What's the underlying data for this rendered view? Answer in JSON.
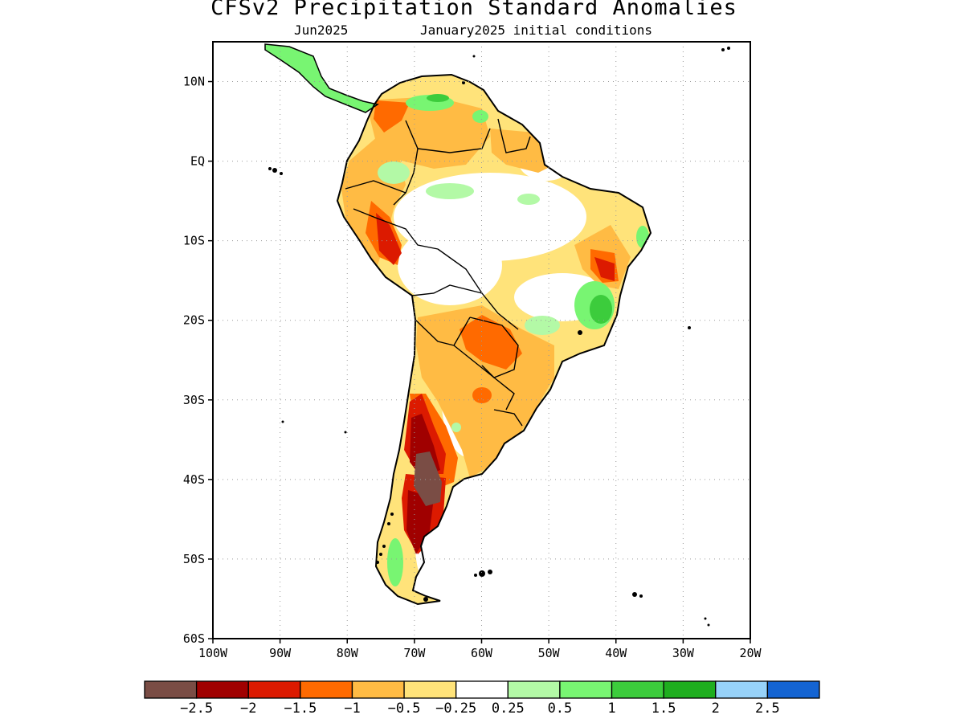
{
  "title": "CFSv2 Precipitation Standard Anomalies",
  "subtitle_left": "Jun2025",
  "subtitle_right": "January2025 initial conditions",
  "axes": {
    "lon_range": [
      -100,
      -20
    ],
    "lat_range": [
      -60,
      15
    ],
    "x_ticks": [
      {
        "value": -100,
        "label": "100W"
      },
      {
        "value": -90,
        "label": "90W"
      },
      {
        "value": -80,
        "label": "80W"
      },
      {
        "value": -70,
        "label": "70W"
      },
      {
        "value": -60,
        "label": "60W"
      },
      {
        "value": -50,
        "label": "50W"
      },
      {
        "value": -40,
        "label": "40W"
      },
      {
        "value": -30,
        "label": "30W"
      },
      {
        "value": -20,
        "label": "20W"
      }
    ],
    "y_ticks": [
      {
        "value": 10,
        "label": "10N"
      },
      {
        "value": 0,
        "label": "EQ"
      },
      {
        "value": -10,
        "label": "10S"
      },
      {
        "value": -20,
        "label": "20S"
      },
      {
        "value": -30,
        "label": "30S"
      },
      {
        "value": -40,
        "label": "40S"
      },
      {
        "value": -50,
        "label": "50S"
      },
      {
        "value": -60,
        "label": "60S"
      }
    ],
    "grid": "dotted"
  },
  "colorbar": {
    "colors": [
      "#7a4d45",
      "#a00000",
      "#dc1a00",
      "#ff6a00",
      "#ffbb44",
      "#ffe37a",
      "#ffffff",
      "#b3f9a6",
      "#78f572",
      "#3ccc3c",
      "#1fae1f",
      "#97d2f9",
      "#1464d2"
    ],
    "labels": [
      "-2.5",
      "-2",
      "-1.5",
      "-1",
      "-0.5",
      "-0.25",
      "0.25",
      "0.5",
      "1",
      "1.5",
      "2",
      "2.5"
    ]
  },
  "colors": {
    "land_outline": "#000000",
    "frame": "#000000",
    "grid": "#9a9a9a"
  }
}
